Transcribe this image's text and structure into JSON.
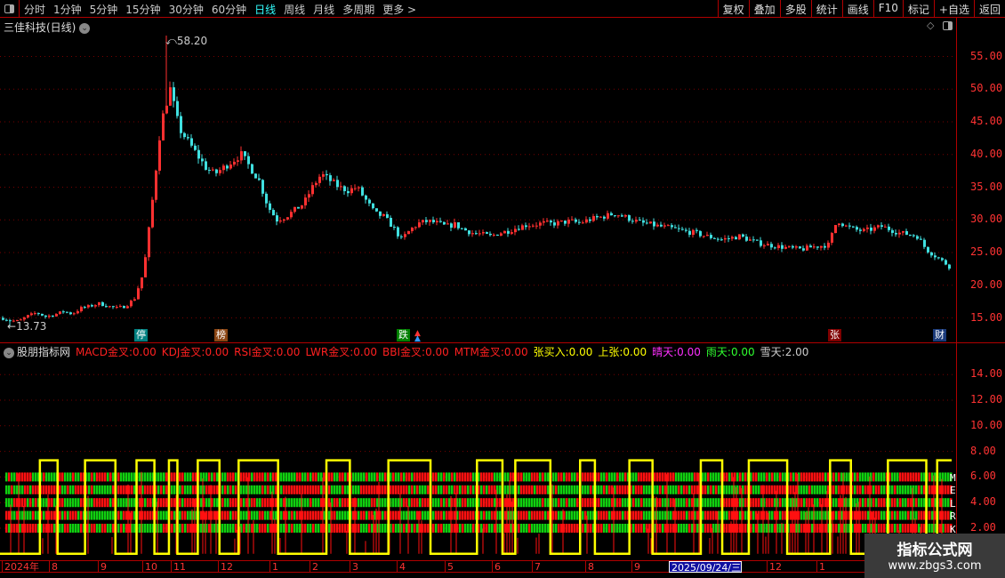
{
  "toolbar": {
    "periods": [
      "分时",
      "1分钟",
      "5分钟",
      "15分钟",
      "30分钟",
      "60分钟",
      "日线",
      "周线",
      "月线",
      "多周期",
      "更多 >"
    ],
    "active_period": "日线",
    "right_buttons": [
      "复权",
      "叠加",
      "多股",
      "统计",
      "画线",
      "F10",
      "标记",
      "+自选",
      "返回"
    ]
  },
  "stock": {
    "title": "三佳科技(日线)",
    "high_label": "58.20",
    "low_label": "13.73"
  },
  "price_axis": [
    "55.00",
    "50.00",
    "45.00",
    "40.00",
    "35.00",
    "30.00",
    "25.00",
    "20.00",
    "15.00"
  ],
  "price_series": {
    "high": 58.2,
    "low": 13.73,
    "closes": [
      15,
      14.6,
      14.5,
      15.3,
      15.8,
      15.2,
      15.5,
      16,
      15.6,
      16.5,
      16.8,
      17.2,
      16.8,
      16.5,
      16.8,
      18,
      22,
      33,
      45,
      50,
      44,
      42,
      40,
      38,
      37,
      38,
      39,
      40,
      38,
      36,
      32,
      30,
      30.5,
      31.5,
      32.5,
      35,
      37,
      36,
      35,
      34.5,
      35,
      33,
      31,
      30.5,
      29,
      27,
      28.5,
      29.5,
      29.8,
      29.5,
      29,
      29.3,
      28.5,
      28,
      27.8,
      27.5,
      28,
      28.3,
      28.8,
      29.2,
      29.3,
      29.5,
      29.4,
      29.6,
      29.8,
      29.5,
      30,
      30.3,
      30.6,
      31,
      30.5,
      30,
      29.5,
      29.3,
      29,
      28.8,
      28.5,
      28.2,
      28,
      27.6,
      27.3,
      27,
      27.2,
      27.5,
      27,
      26.5,
      26.2,
      26,
      25.8,
      25.6,
      25.5,
      25.8,
      26,
      26.2,
      30,
      29,
      28.5,
      28.3,
      28.6,
      29,
      28.5,
      28,
      27.8,
      27.5,
      25.5,
      24.5,
      23.5
    ],
    "up_color": "#ff3030",
    "down_color": "#40e0e0"
  },
  "markers": [
    {
      "text": "停",
      "color": "#008080"
    },
    {
      "text": "榜",
      "color": "#8b4513"
    },
    {
      "text": "跌",
      "color": "#008000"
    },
    {
      "text": "张",
      "color": "#800000"
    },
    {
      "text": "财",
      "color": "#1a3a7a"
    }
  ],
  "indicator": {
    "name": "股朋指标网",
    "items": [
      {
        "label": "MACD金叉:",
        "value": "0.00",
        "color": "#ff2020"
      },
      {
        "label": "KDJ金叉:",
        "value": "0.00",
        "color": "#ff2020"
      },
      {
        "label": "RSI金叉:",
        "value": "0.00",
        "color": "#ff2020"
      },
      {
        "label": "LWR金叉:",
        "value": "0.00",
        "color": "#ff2020"
      },
      {
        "label": "BBI金叉:",
        "value": "0.00",
        "color": "#ff2020"
      },
      {
        "label": "MTM金叉:",
        "value": "0.00",
        "color": "#ff2020"
      },
      {
        "label": "张买入:",
        "value": "0.00",
        "color": "#ffff00"
      },
      {
        "label": "上张:",
        "value": "0.00",
        "color": "#ffff00"
      },
      {
        "label": "晴天:",
        "value": "0.00",
        "color": "#ff30ff"
      },
      {
        "label": "雨天:",
        "value": "0.00",
        "color": "#30ff30"
      },
      {
        "label": "雪天:",
        "value": "2.00",
        "color": "#cccccc"
      }
    ],
    "axis": [
      "14.00",
      "12.00",
      "10.00",
      "8.00",
      "6.00",
      "4.00",
      "2.00"
    ],
    "band_letters": [
      "M",
      "E",
      "L",
      "R",
      "K"
    ]
  },
  "date_axis": [
    "2024年",
    "8",
    "9",
    "10",
    "11",
    "12",
    "1",
    "2",
    "3",
    "4",
    "5",
    "6",
    "7",
    "8",
    "9",
    "2025/09/24/三",
    "12",
    "1"
  ],
  "watermark": {
    "title": "指标公式网",
    "url": "www.zbgs3.com"
  }
}
